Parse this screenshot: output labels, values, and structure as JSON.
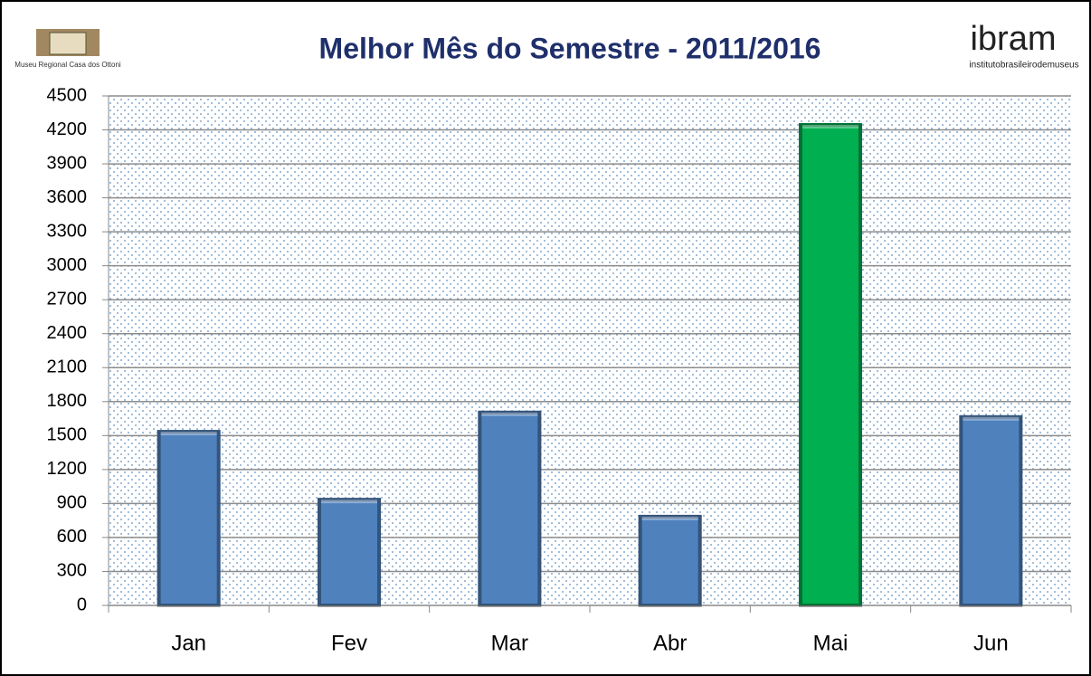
{
  "logos": {
    "left": "Museu Regional Casa dos Ottoni",
    "right": "ibram",
    "right_subtitle": "institutobrasileirodemuseus"
  },
  "chart_data": {
    "type": "bar",
    "title": "Melhor Mês do Semestre - 2011/2016",
    "categories": [
      "Jan",
      "Fev",
      "Mar",
      "Abr",
      "Mai",
      "Jun"
    ],
    "values": [
      1550,
      950,
      1720,
      800,
      4260,
      1680
    ],
    "colors": [
      "#4f81bd",
      "#4f81bd",
      "#4f81bd",
      "#4f81bd",
      "#00b050",
      "#4f81bd"
    ],
    "ylim": [
      0,
      4500
    ],
    "yticks": [
      0,
      300,
      600,
      900,
      1200,
      1500,
      1800,
      2100,
      2400,
      2700,
      3000,
      3300,
      3600,
      3900,
      4200,
      4500
    ],
    "grid": true
  }
}
